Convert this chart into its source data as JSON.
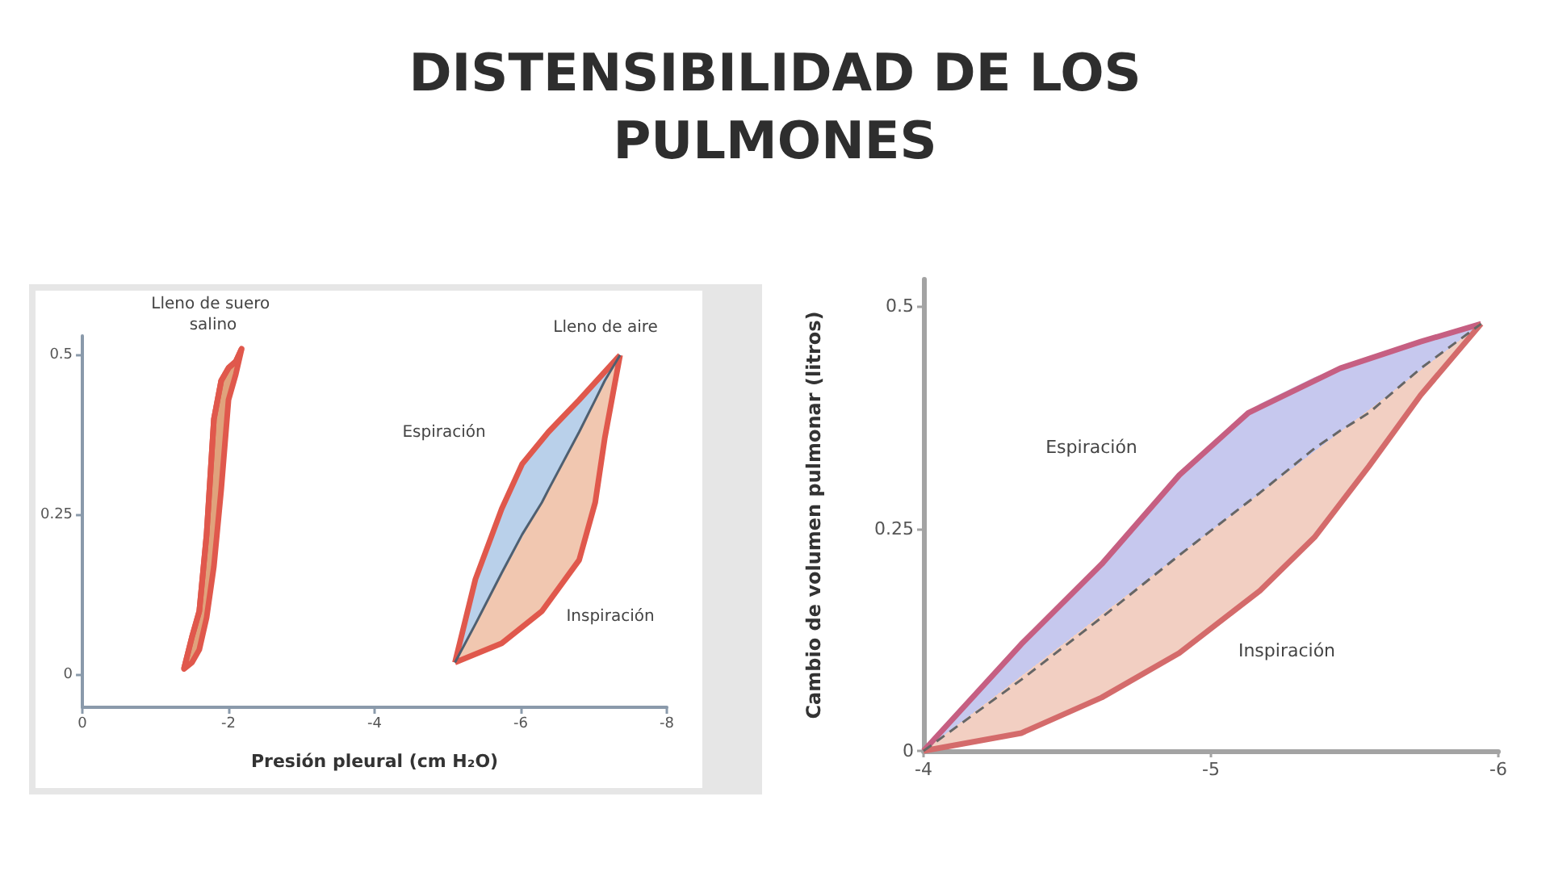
{
  "chart_data": [
    {
      "type": "line",
      "title": "DISTENSIBILIDAD DE LOS PULMONES",
      "xlabel": "Presión pleural (cm H₂O)",
      "xlim": [
        0,
        -8
      ],
      "xticks": [
        0,
        -2,
        -4,
        -6,
        -8
      ],
      "ylim": [
        -0.05,
        0.53
      ],
      "yticks": [
        0,
        0.25,
        0.5
      ],
      "series": [
        {
          "color": "#e0584c",
          "x": [
            -1.39,
            -1.5,
            -1.6,
            -1.7,
            -1.8,
            -1.9,
            -2.0,
            -2.1,
            -2.18
          ],
          "values": [
            0.01,
            0.06,
            0.1,
            0.22,
            0.4,
            0.46,
            0.48,
            0.49,
            0.51
          ],
          "lower": [
            0.01,
            0.02,
            0.04,
            0.09,
            0.17,
            0.29,
            0.43,
            0.47,
            0.51
          ],
          "upper": [
            0.01,
            0.06,
            0.1,
            0.22,
            0.4,
            0.46,
            0.48,
            0.49,
            0.51
          ]
        },
        {
          "color": "#e0584c",
          "x": [
            -5.1,
            -5.38,
            -5.74,
            -6.02,
            -6.38,
            -6.8,
            -7.36
          ],
          "values": [
            0.02,
            0.15,
            0.26,
            0.33,
            0.38,
            0.43,
            0.5
          ]
        },
        {
          "color": "#e0584c",
          "x": [
            -5.1,
            -5.74,
            -6.29,
            -6.8,
            -7.02,
            -7.15,
            -7.36
          ],
          "values": [
            0.02,
            0.05,
            0.1,
            0.18,
            0.27,
            0.37,
            0.5
          ]
        },
        {
          "color": "#4f5f70",
          "x": [
            -5.1,
            -5.38,
            -5.74,
            -6.02,
            -6.29,
            -6.38,
            -6.8,
            -7.02,
            -7.15,
            -7.36
          ],
          "values": [
            0.02,
            0.08,
            0.16,
            0.22,
            0.27,
            0.29,
            0.38,
            0.43,
            0.46,
            0.5
          ],
          "lower": [
            0.02,
            0.03,
            0.05,
            0.08,
            0.1,
            0.11,
            0.18,
            0.27,
            0.37,
            0.5
          ],
          "upper": [
            0.02,
            0.15,
            0.26,
            0.33,
            0.37,
            0.38,
            0.43,
            0.46,
            0.47,
            0.5
          ]
        }
      ],
      "annotations": [
        "Lleno de suero salino",
        "Lleno de aire",
        "Espiración",
        "Inspiración"
      ]
    },
    {
      "type": "line",
      "ylabel": "Cambio de volumen pulmonar (litros)",
      "xlim": [
        -4,
        -6
      ],
      "xticks": [
        -4,
        -5,
        -6
      ],
      "ylim": [
        0,
        0.53
      ],
      "yticks": [
        0,
        0.25,
        0.5
      ],
      "series": [
        {
          "color": "#c65f82",
          "x": [
            -4,
            -4.34,
            -4.62,
            -4.89,
            -5.13,
            -5.45,
            -5.73,
            -5.94
          ],
          "values": [
            0,
            0.12,
            0.21,
            0.31,
            0.38,
            0.43,
            0.46,
            0.48
          ]
        },
        {
          "color": "#d46b6b",
          "x": [
            -4,
            -4.34,
            -4.62,
            -4.89,
            -5.17,
            -5.36,
            -5.55,
            -5.73,
            -5.94
          ],
          "values": [
            0,
            0.02,
            0.06,
            0.11,
            0.18,
            0.24,
            0.32,
            0.4,
            0.48
          ]
        },
        {
          "color": "#666666",
          "line_style": "dashed",
          "x": [
            -4,
            -4.34,
            -4.62,
            -4.89,
            -5.13,
            -5.17,
            -5.36,
            -5.45,
            -5.55,
            -5.73,
            -5.94
          ],
          "values": [
            0,
            0.08,
            0.15,
            0.22,
            0.28,
            0.29,
            0.34,
            0.36,
            0.38,
            0.43,
            0.48
          ],
          "lower": [
            0,
            0.02,
            0.06,
            0.11,
            0.17,
            0.18,
            0.24,
            0.28,
            0.32,
            0.4,
            0.48
          ],
          "upper": [
            0,
            0.12,
            0.21,
            0.31,
            0.38,
            0.39,
            0.42,
            0.43,
            0.44,
            0.46,
            0.48
          ]
        }
      ],
      "annotations": [
        "Espiración",
        "Inspiración"
      ]
    }
  ]
}
